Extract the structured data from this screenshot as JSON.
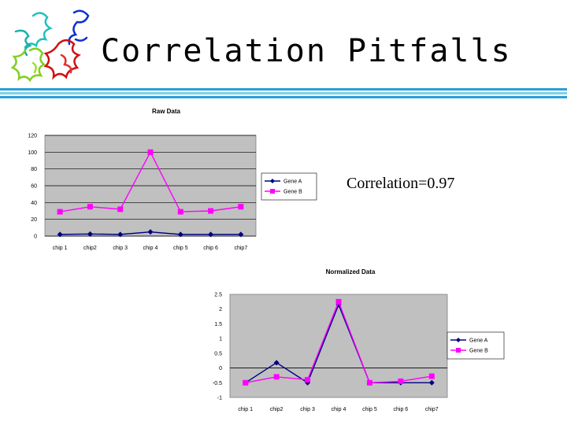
{
  "slide": {
    "title": "Correlation Pitfalls",
    "annotation": "Correlation=0.97",
    "logo_icon": "protein-structure-icon",
    "stripe_colors": [
      "#2a9fd6",
      "#7fd0ea",
      "#2a9fd6"
    ]
  },
  "chart_data": [
    {
      "type": "line",
      "title": "Raw Data",
      "categories": [
        "chip 1",
        "chip2",
        "chip 3",
        "chip 4",
        "chip 5",
        "chip 6",
        "chip7"
      ],
      "y_ticks": [
        "120",
        "100",
        "80",
        "60",
        "40",
        "20",
        "0"
      ],
      "ylim": [
        0,
        120
      ],
      "grid": "horizontal",
      "legend": "right",
      "series": [
        {
          "name": "Gene A",
          "values": [
            2,
            2.5,
            2,
            5,
            2,
            2,
            2
          ],
          "color": "#000080",
          "marker": "diamond"
        },
        {
          "name": "Gene B",
          "values": [
            29,
            35,
            32,
            100,
            29,
            30,
            35
          ],
          "color": "#ff00ff",
          "marker": "square"
        }
      ]
    },
    {
      "type": "line",
      "title": "Normalized Data",
      "categories": [
        "chip 1",
        "chip2",
        "chip 3",
        "chip 4",
        "chip 5",
        "chip 6",
        "chip7"
      ],
      "y_ticks": [
        "2.5",
        "2",
        "1.5",
        "1",
        "0.5",
        "0",
        "-0.5",
        "-1"
      ],
      "ylim": [
        -1,
        2.5
      ],
      "grid": "none",
      "legend": "right",
      "series": [
        {
          "name": "Gene A",
          "values": [
            -0.5,
            0.18,
            -0.5,
            2.15,
            -0.5,
            -0.5,
            -0.5
          ],
          "color": "#000080",
          "marker": "diamond"
        },
        {
          "name": "Gene B",
          "values": [
            -0.5,
            -0.3,
            -0.4,
            2.25,
            -0.5,
            -0.45,
            -0.28
          ],
          "color": "#ff00ff",
          "marker": "square"
        }
      ]
    }
  ]
}
